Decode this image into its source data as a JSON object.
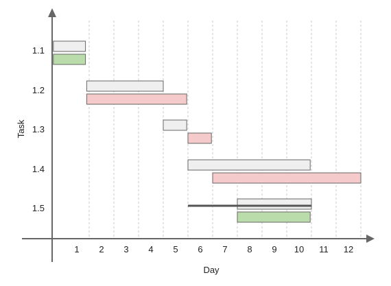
{
  "chart_data": {
    "type": "gantt",
    "title": "",
    "xlabel": "Day",
    "ylabel": "Task",
    "xlim": [
      0,
      12.7
    ],
    "x_ticks": [
      1,
      2,
      3,
      4,
      5,
      6,
      7,
      8,
      9,
      10,
      11,
      12
    ],
    "grid": "vertical dashed lines at day boundaries",
    "legend": "none",
    "tasks": [
      "1.1",
      "1.2",
      "1.3",
      "1.4",
      "1.5"
    ],
    "colors": {
      "planned": "#efefef",
      "late": "#f4caca",
      "on_time": "#b9dcaa",
      "border": "#666666",
      "axis": "#666666",
      "grid": "#c8c8c8",
      "progress_line": "#555555"
    },
    "bars": [
      {
        "task": "1.1",
        "kind": "planned",
        "start": 0.05,
        "end": 1.35
      },
      {
        "task": "1.1",
        "kind": "on_time",
        "start": 0.05,
        "end": 1.35
      },
      {
        "task": "1.2",
        "kind": "planned",
        "start": 1.4,
        "end": 4.5
      },
      {
        "task": "1.2",
        "kind": "late",
        "start": 1.4,
        "end": 5.45
      },
      {
        "task": "1.3",
        "kind": "planned",
        "start": 4.5,
        "end": 5.45
      },
      {
        "task": "1.3",
        "kind": "late",
        "start": 5.5,
        "end": 6.45
      },
      {
        "task": "1.4",
        "kind": "planned",
        "start": 5.5,
        "end": 10.45
      },
      {
        "task": "1.4",
        "kind": "late",
        "start": 6.5,
        "end": 12.5
      },
      {
        "task": "1.5",
        "kind": "planned",
        "start": 7.5,
        "end": 10.5
      },
      {
        "task": "1.5",
        "kind": "on_time",
        "start": 7.5,
        "end": 10.45
      }
    ],
    "progress_line": {
      "task": "1.5",
      "start": 5.5,
      "end": 10.5
    }
  }
}
